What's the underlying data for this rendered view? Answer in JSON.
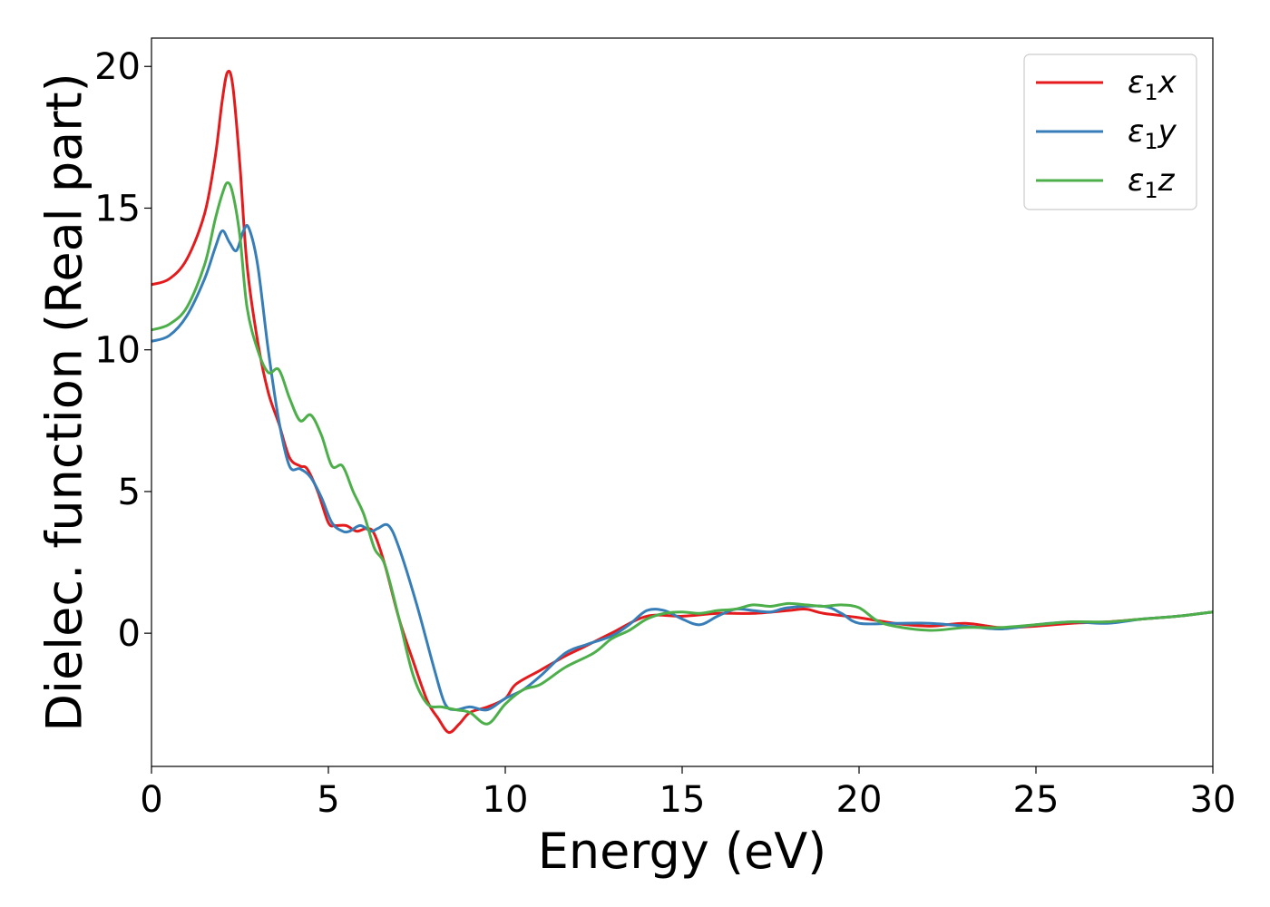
{
  "chart_data": {
    "type": "line",
    "title": "",
    "xlabel": "Energy (eV)",
    "ylabel": "Dielec. function (Real part)",
    "xlim": [
      0,
      30
    ],
    "ylim": [
      -4.7,
      21.0
    ],
    "xticks": [
      0,
      5,
      10,
      15,
      20,
      25,
      30
    ],
    "yticks": [
      0,
      5,
      10,
      15,
      20
    ],
    "grid": false,
    "legend_position": "top-right",
    "series": [
      {
        "name": "ε1x",
        "legend_base": "ε",
        "legend_sub": "1",
        "legend_suffix": "x",
        "color": "#e41a1c",
        "x": [
          0,
          0.5,
          1.0,
          1.5,
          1.8,
          2.0,
          2.15,
          2.3,
          2.5,
          2.7,
          3.0,
          3.3,
          3.6,
          3.9,
          4.2,
          4.4,
          4.7,
          5.0,
          5.2,
          5.5,
          5.8,
          6.1,
          6.3,
          6.6,
          7.0,
          7.4,
          7.8,
          8.1,
          8.4,
          8.7,
          9.0,
          9.5,
          10.0,
          10.3,
          11.0,
          11.7,
          12.2,
          13.0,
          14.0,
          15.0,
          16.0,
          17.0,
          18.0,
          18.5,
          19.0,
          20.0,
          21.0,
          22.0,
          23.0,
          24.0,
          25.0,
          26.0,
          27.0,
          28.0,
          29.0,
          30.0
        ],
        "y": [
          12.3,
          12.5,
          13.2,
          14.8,
          16.8,
          18.8,
          19.8,
          19.3,
          16.5,
          13.0,
          10.3,
          8.5,
          7.4,
          6.2,
          5.9,
          5.8,
          5.0,
          3.9,
          3.8,
          3.8,
          3.6,
          3.7,
          3.5,
          2.4,
          0.5,
          -1.0,
          -2.4,
          -3.0,
          -3.5,
          -3.2,
          -2.8,
          -2.6,
          -2.3,
          -1.8,
          -1.3,
          -0.8,
          -0.5,
          0.0,
          0.6,
          0.6,
          0.7,
          0.7,
          0.8,
          0.85,
          0.7,
          0.55,
          0.35,
          0.25,
          0.35,
          0.2,
          0.25,
          0.35,
          0.4,
          0.5,
          0.6,
          0.75
        ]
      },
      {
        "name": "ε1y",
        "legend_base": "ε",
        "legend_sub": "1",
        "legend_suffix": "y",
        "color": "#377eb8",
        "x": [
          0,
          0.5,
          1.0,
          1.5,
          1.8,
          2.0,
          2.2,
          2.4,
          2.6,
          2.75,
          3.0,
          3.3,
          3.6,
          3.9,
          4.2,
          4.5,
          4.8,
          5.1,
          5.4,
          5.6,
          5.9,
          6.2,
          6.4,
          6.7,
          7.0,
          7.5,
          8.0,
          8.3,
          8.6,
          9.0,
          9.5,
          10.0,
          10.5,
          11.0,
          11.7,
          12.3,
          13.0,
          13.5,
          14.0,
          14.5,
          15.0,
          15.5,
          16.0,
          16.5,
          17.0,
          17.5,
          18.0,
          19.0,
          19.5,
          20.0,
          21.0,
          22.0,
          23.0,
          24.0,
          25.0,
          26.0,
          27.0,
          28.0,
          29.0,
          30.0
        ],
        "y": [
          10.3,
          10.5,
          11.2,
          12.5,
          13.6,
          14.2,
          13.8,
          13.5,
          14.2,
          14.3,
          13.0,
          10.0,
          7.5,
          5.9,
          5.8,
          5.5,
          4.8,
          3.9,
          3.6,
          3.6,
          3.8,
          3.6,
          3.7,
          3.8,
          3.0,
          1.0,
          -1.3,
          -2.5,
          -2.7,
          -2.6,
          -2.7,
          -2.3,
          -2.0,
          -1.5,
          -0.7,
          -0.4,
          -0.1,
          0.3,
          0.8,
          0.8,
          0.5,
          0.3,
          0.6,
          0.85,
          0.8,
          0.75,
          0.9,
          0.95,
          0.7,
          0.35,
          0.35,
          0.35,
          0.25,
          0.15,
          0.3,
          0.4,
          0.35,
          0.5,
          0.6,
          0.75
        ]
      },
      {
        "name": "ε1z",
        "legend_base": "ε",
        "legend_sub": "1",
        "legend_suffix": "z",
        "color": "#4daf4a",
        "x": [
          0,
          0.5,
          1.0,
          1.5,
          1.8,
          2.0,
          2.15,
          2.3,
          2.5,
          2.7,
          3.0,
          3.3,
          3.6,
          3.9,
          4.2,
          4.5,
          4.8,
          5.1,
          5.4,
          5.7,
          6.0,
          6.3,
          6.6,
          7.0,
          7.4,
          7.8,
          8.2,
          8.6,
          9.0,
          9.5,
          10.0,
          10.5,
          11.0,
          11.7,
          12.5,
          13.0,
          13.5,
          14.0,
          14.5,
          15.0,
          15.5,
          16.0,
          16.5,
          17.0,
          17.5,
          18.0,
          18.5,
          19.0,
          19.5,
          20.0,
          20.5,
          21.0,
          22.0,
          23.0,
          24.0,
          25.0,
          26.0,
          27.0,
          28.0,
          29.0,
          30.0
        ],
        "y": [
          10.7,
          10.9,
          11.5,
          13.0,
          14.6,
          15.5,
          15.9,
          15.5,
          14.0,
          11.5,
          10.0,
          9.2,
          9.3,
          8.3,
          7.5,
          7.7,
          7.0,
          5.9,
          5.9,
          5.0,
          4.2,
          3.0,
          2.4,
          0.5,
          -1.5,
          -2.5,
          -2.6,
          -2.7,
          -2.8,
          -3.2,
          -2.5,
          -2.0,
          -1.8,
          -1.2,
          -0.7,
          -0.2,
          0.1,
          0.5,
          0.7,
          0.75,
          0.7,
          0.8,
          0.85,
          1.0,
          0.95,
          1.05,
          1.0,
          0.95,
          1.0,
          0.9,
          0.45,
          0.25,
          0.1,
          0.2,
          0.2,
          0.3,
          0.4,
          0.4,
          0.5,
          0.6,
          0.75
        ]
      }
    ]
  }
}
